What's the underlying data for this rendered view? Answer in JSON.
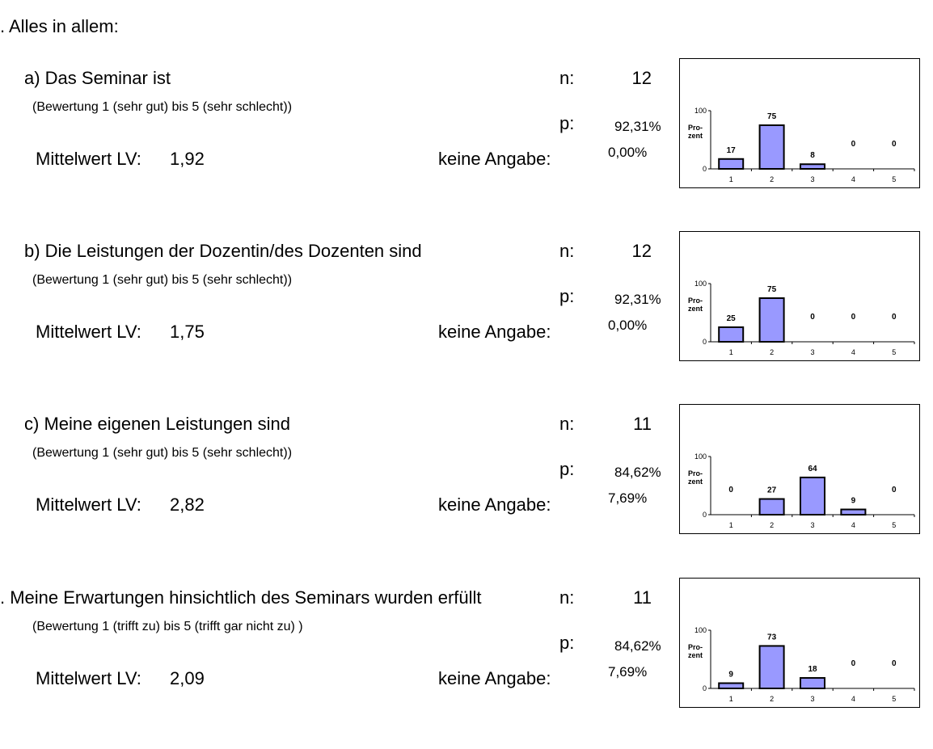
{
  "header": {
    "title": ". Alles in allem:"
  },
  "labels": {
    "n": "n:",
    "p": "p:",
    "mittelwert": "Mittelwert LV:",
    "keine_angabe": "keine Angabe:"
  },
  "questions": [
    {
      "title": "a) Das Seminar ist",
      "scale": "(Bewertung 1 (sehr gut) bis 5 (sehr schlecht))",
      "n": "12",
      "p": "92,31%",
      "mittelwert": "1,92",
      "keine_angabe": "0,00%"
    },
    {
      "title": "b) Die Leistungen der Dozentin/des Dozenten sind",
      "scale": "(Bewertung 1 (sehr gut) bis 5 (sehr schlecht))",
      "n": "12",
      "p": "92,31%",
      "mittelwert": "1,75",
      "keine_angabe": "0,00%"
    },
    {
      "title": "c) Meine eigenen Leistungen sind",
      "scale": "(Bewertung 1 (sehr gut) bis 5 (sehr schlecht))",
      "n": "11",
      "p": "84,62%",
      "mittelwert": "2,82",
      "keine_angabe": "7,69%"
    },
    {
      "title": ". Meine Erwartungen hinsichtlich des Seminars wurden erfüllt",
      "scale": "(Bewertung 1 (trifft zu) bis 5 (trifft gar nicht zu) )",
      "n": "11",
      "p": "84,62%",
      "mittelwert": "2,09",
      "keine_angabe": "7,69%"
    }
  ],
  "colors": {
    "bar_fill": "#9999ff",
    "bar_stroke": "#000000"
  },
  "chart_data": [
    {
      "type": "bar",
      "categories": [
        "1",
        "2",
        "3",
        "4",
        "5"
      ],
      "values": [
        17,
        75,
        8,
        0,
        0
      ],
      "ylabel": "Pro-\nzent",
      "ylim": [
        0,
        100
      ],
      "yticks": [
        0,
        100
      ],
      "grid": false,
      "legend": "none"
    },
    {
      "type": "bar",
      "categories": [
        "1",
        "2",
        "3",
        "4",
        "5"
      ],
      "values": [
        25,
        75,
        0,
        0,
        0
      ],
      "ylabel": "Pro-\nzent",
      "ylim": [
        0,
        100
      ],
      "yticks": [
        0,
        100
      ],
      "grid": false,
      "legend": "none"
    },
    {
      "type": "bar",
      "categories": [
        "1",
        "2",
        "3",
        "4",
        "5"
      ],
      "values": [
        0,
        27,
        64,
        9,
        0
      ],
      "ylabel": "Pro-\nzent",
      "ylim": [
        0,
        100
      ],
      "yticks": [
        0,
        100
      ],
      "grid": false,
      "legend": "none"
    },
    {
      "type": "bar",
      "categories": [
        "1",
        "2",
        "3",
        "4",
        "5"
      ],
      "values": [
        9,
        73,
        18,
        0,
        0
      ],
      "ylabel": "Pro-\nzent",
      "ylim": [
        0,
        100
      ],
      "yticks": [
        0,
        100
      ],
      "grid": false,
      "legend": "none"
    }
  ]
}
